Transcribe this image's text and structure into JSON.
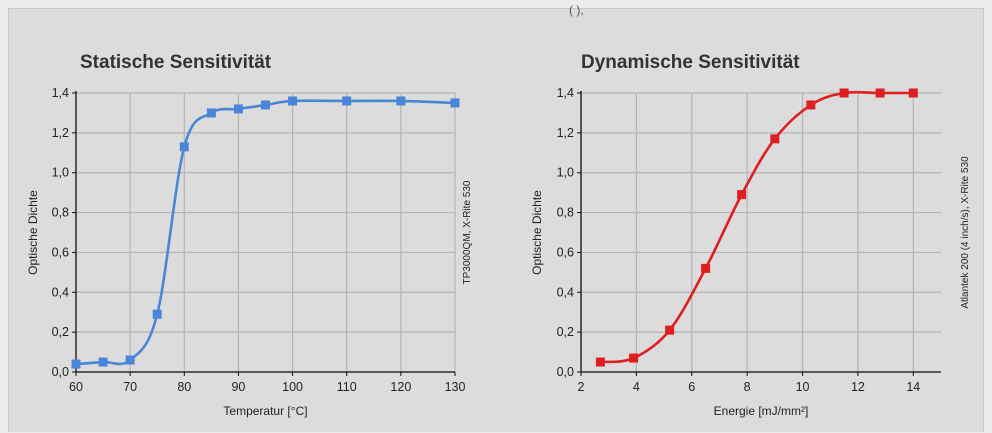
{
  "clipped_top_text": "(            ),",
  "chart_data": [
    {
      "type": "line",
      "title": "Statische Sensitivität",
      "xlabel": "Temperatur [°C]",
      "ylabel": "Optische Dichte",
      "side_note": "TP3000QM, X-Rite 530",
      "xlim": [
        60,
        130
      ],
      "ylim": [
        0,
        1.4
      ],
      "x_ticks": [
        60,
        70,
        80,
        90,
        100,
        110,
        120,
        130
      ],
      "y_ticks": [
        "0,0",
        "0,2",
        "0,4",
        "0,6",
        "0,8",
        "1,0",
        "1,2",
        "1,4"
      ],
      "grid": true,
      "color": "#4a86d8",
      "marker": "square",
      "x": [
        60,
        65,
        70,
        75,
        80,
        85,
        90,
        95,
        100,
        110,
        120,
        130
      ],
      "y": [
        0.04,
        0.05,
        0.06,
        0.29,
        1.13,
        1.3,
        1.32,
        1.34,
        1.36,
        1.36,
        1.36,
        1.35
      ]
    },
    {
      "type": "line",
      "title": "Dynamische Sensitivität",
      "xlabel": "Energie [mJ/mm²]",
      "ylabel": "Optische Dichte",
      "side_note": "Atlantek 200 (4 inch/s), X-Rite 530",
      "xlim": [
        2,
        15
      ],
      "ylim": [
        0,
        1.4
      ],
      "x_ticks": [
        2,
        4,
        6,
        8,
        10,
        12,
        14
      ],
      "y_ticks": [
        "0,0",
        "0,2",
        "0,4",
        "0,6",
        "0,8",
        "1,0",
        "1,2",
        "1,4"
      ],
      "grid": true,
      "color": "#dd1f1f",
      "marker": "square",
      "x": [
        2.7,
        3.9,
        5.2,
        6.5,
        7.8,
        9.0,
        10.3,
        11.5,
        12.8,
        14.0
      ],
      "y": [
        0.05,
        0.07,
        0.21,
        0.52,
        0.89,
        1.17,
        1.34,
        1.4,
        1.4,
        1.4
      ]
    }
  ]
}
